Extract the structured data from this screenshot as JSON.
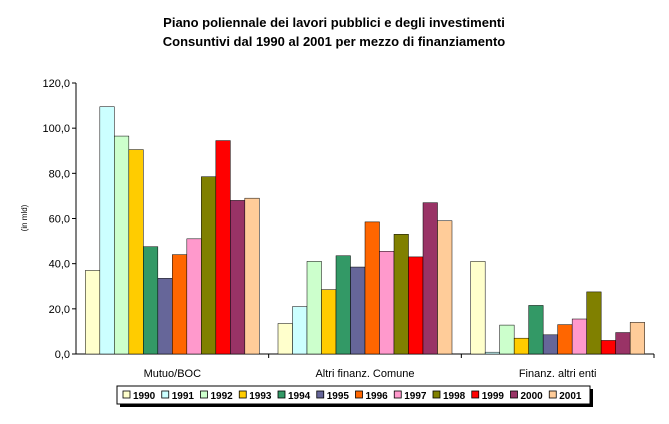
{
  "chart_data": {
    "type": "bar",
    "title": "Piano poliennale dei lavori pubblici e degli investimenti",
    "subtitle": "Consuntivi dal 1990 al 2001 per mezzo di finanziamento",
    "xlabel": "",
    "ylabel": "(in mld)",
    "ylim": [
      0,
      120
    ],
    "yticks": [
      "0,0",
      "20,0",
      "40,0",
      "60,0",
      "80,0",
      "100,0",
      "120,0"
    ],
    "grid": false,
    "legend_position": "bottom",
    "categories": [
      "Mutuo/BOC",
      "Altri finanz. Comune",
      "Finanz. altri enti"
    ],
    "series": [
      {
        "name": "1990",
        "color": "#FFFFCC",
        "values": [
          37.0,
          13.5,
          41.0
        ]
      },
      {
        "name": "1991",
        "color": "#CCFFFF",
        "values": [
          109.5,
          21.0,
          0.8
        ]
      },
      {
        "name": "1992",
        "color": "#CCFFCC",
        "values": [
          96.5,
          41.0,
          12.8
        ]
      },
      {
        "name": "1993",
        "color": "#FFCC00",
        "values": [
          90.5,
          28.5,
          7.0
        ]
      },
      {
        "name": "1994",
        "color": "#339966",
        "values": [
          47.5,
          43.5,
          21.5
        ]
      },
      {
        "name": "1995",
        "color": "#666699",
        "values": [
          33.5,
          38.5,
          8.5
        ]
      },
      {
        "name": "1996",
        "color": "#FF6600",
        "values": [
          44.0,
          58.5,
          13.0
        ]
      },
      {
        "name": "1997",
        "color": "#FF99CC",
        "values": [
          51.0,
          45.5,
          15.5
        ]
      },
      {
        "name": "1998",
        "color": "#808000",
        "values": [
          78.5,
          53.0,
          27.5
        ]
      },
      {
        "name": "1999",
        "color": "#FF0000",
        "values": [
          94.5,
          43.0,
          6.0
        ]
      },
      {
        "name": "2000",
        "color": "#993366",
        "values": [
          68.0,
          67.0,
          9.5
        ]
      },
      {
        "name": "2001",
        "color": "#FFCC99",
        "values": [
          69.0,
          59.0,
          14.0
        ]
      }
    ]
  }
}
